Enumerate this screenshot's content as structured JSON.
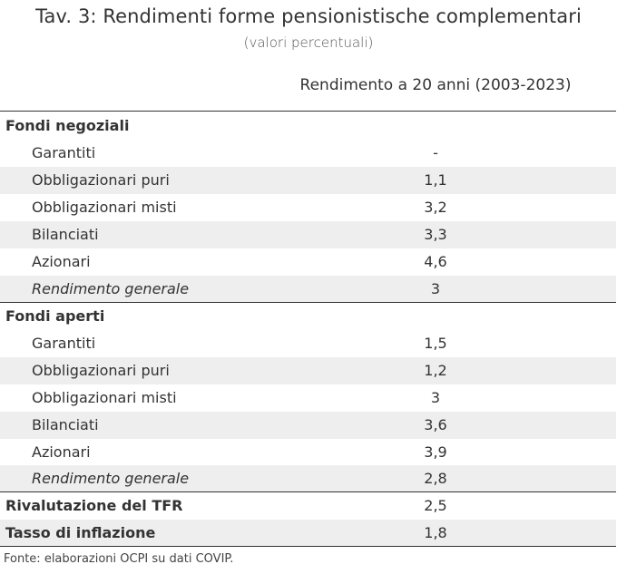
{
  "title": "Tav. 3: Rendimenti forme pensionistische complementari",
  "subtitle": "(valori percentuali)",
  "column_header": "Rendimento a 20 anni (2003-2023)",
  "sections": [
    {
      "heading": "Fondi negoziali",
      "rows": [
        {
          "label": "Garantiti",
          "value": "-"
        },
        {
          "label": "Obbligazionari puri",
          "value": "1,1"
        },
        {
          "label": "Obbligazionari misti",
          "value": "3,2"
        },
        {
          "label": "Bilanciati",
          "value": "3,3"
        },
        {
          "label": "Azionari",
          "value": "4,6"
        },
        {
          "label": "Rendimento generale",
          "value": "3"
        }
      ]
    },
    {
      "heading": "Fondi aperti",
      "rows": [
        {
          "label": "Garantiti",
          "value": "1,5"
        },
        {
          "label": "Obbligazionari puri",
          "value": "1,2"
        },
        {
          "label": "Obbligazionari misti",
          "value": "3"
        },
        {
          "label": "Bilanciati",
          "value": "3,6"
        },
        {
          "label": "Azionari",
          "value": "3,9"
        },
        {
          "label": "Rendimento generale",
          "value": "2,8"
        }
      ]
    }
  ],
  "totals": [
    {
      "label": "Rivalutazione del TFR",
      "value": "2,5"
    },
    {
      "label": "Tasso di inflazione",
      "value": "1,8"
    }
  ],
  "source": "Fonte: elaborazioni OCPI su dati COVIP."
}
